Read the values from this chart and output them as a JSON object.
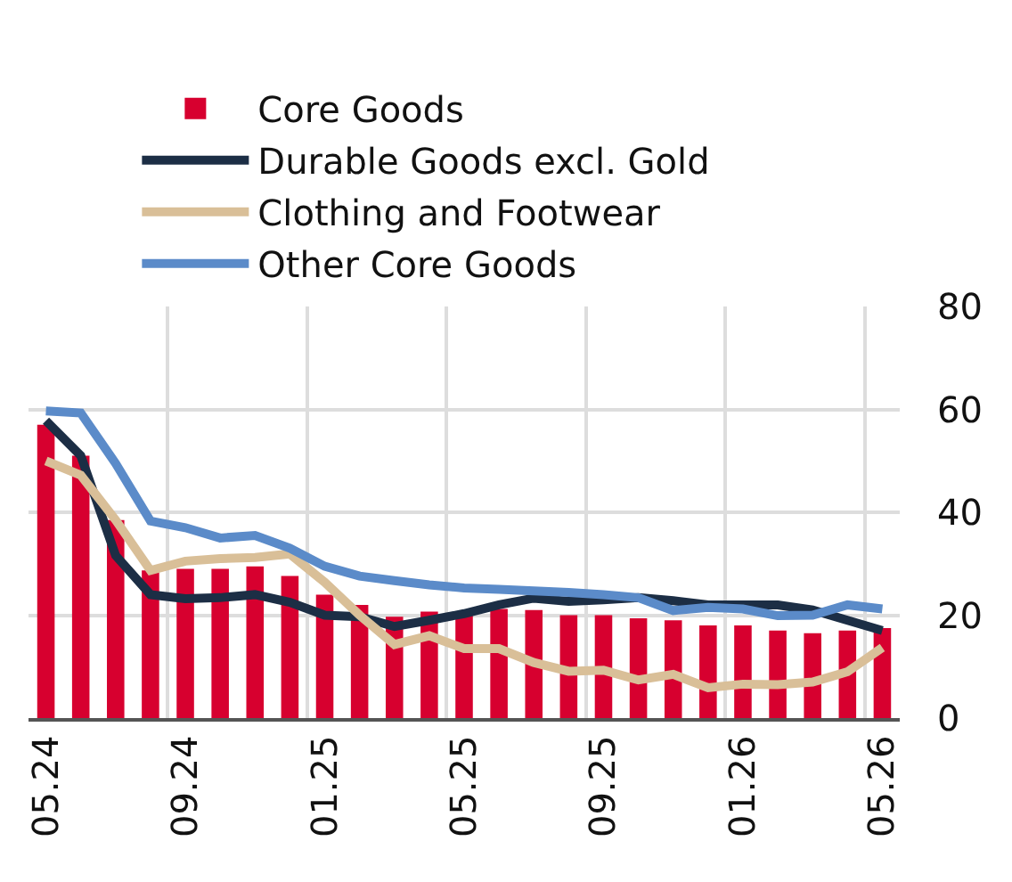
{
  "chart_data": {
    "type": "bar",
    "categories": [
      "05.24",
      null,
      null,
      null,
      "09.24",
      null,
      null,
      null,
      "01.25",
      null,
      null,
      null,
      "05.25",
      null,
      null,
      null,
      "09.25",
      null,
      null,
      null,
      "01.26",
      null,
      null,
      null,
      "05.26"
    ],
    "series": [
      {
        "name": "Core Goods",
        "color": "#d7002f",
        "values": [
          57,
          51,
          38.5,
          28.7,
          29,
          29,
          29.5,
          27.6,
          24,
          22,
          19.7,
          20.7,
          20,
          21.2,
          21,
          20,
          20,
          19.4,
          19,
          18,
          18,
          17,
          16.5,
          17,
          17.5
        ]
      },
      {
        "name": "Durable Goods excl. Gold",
        "type": "line",
        "color": "#1c2e45",
        "values": [
          57.8,
          51,
          31.6,
          24,
          23.2,
          23.4,
          24,
          22.5,
          20,
          19.7,
          17.8,
          19,
          20.3,
          22,
          23.3,
          22.7,
          23,
          23.4,
          22.8,
          22,
          22,
          22,
          21,
          19,
          17
        ]
      },
      {
        "name": "Clothing and Footwear",
        "type": "line",
        "color": "#d9bf98",
        "values": [
          50,
          47.2,
          38.5,
          28.7,
          30.5,
          31,
          31.2,
          31.9,
          26.4,
          20,
          14.3,
          16,
          13.5,
          13.5,
          10.8,
          9.1,
          9.3,
          7.4,
          8.5,
          5.9,
          6.6,
          6.5,
          7,
          9,
          13.7
        ]
      },
      {
        "name": "Other Core Goods",
        "type": "line",
        "color": "#5b8bc9",
        "values": [
          59.7,
          59.3,
          49.5,
          38.3,
          37,
          35,
          35.5,
          33,
          29.5,
          27.6,
          26.7,
          25.9,
          25.3,
          25,
          24.7,
          24.4,
          24,
          23.4,
          20.9,
          21.5,
          21.2,
          19.9,
          20,
          22,
          21.2
        ]
      }
    ],
    "ylim": [
      0,
      80
    ],
    "yticks": [
      0,
      20,
      40,
      60,
      80
    ],
    "grid": true,
    "legend": "top left",
    "marker": "none",
    "line_style": "solid"
  }
}
